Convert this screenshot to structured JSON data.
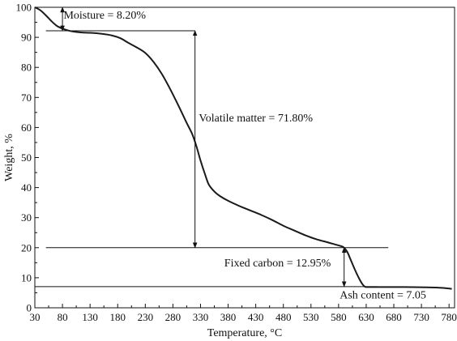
{
  "chart_data": {
    "type": "line",
    "title": "",
    "xlabel": "Temperature, °C",
    "ylabel": "Weight, %",
    "xlim": [
      30,
      790
    ],
    "ylim": [
      0,
      100
    ],
    "x_ticks": [
      30,
      80,
      130,
      180,
      230,
      280,
      330,
      380,
      430,
      480,
      530,
      580,
      630,
      680,
      730,
      780
    ],
    "y_ticks": [
      0,
      10,
      20,
      30,
      40,
      50,
      60,
      70,
      80,
      90,
      100
    ],
    "grid": false,
    "series": [
      {
        "color": "#1a1a1a",
        "points": [
          [
            30,
            100.0
          ],
          [
            40,
            99.0
          ],
          [
            50,
            97.3
          ],
          [
            60,
            95.4
          ],
          [
            70,
            93.8
          ],
          [
            80,
            92.9
          ],
          [
            90,
            92.3
          ],
          [
            100,
            91.9
          ],
          [
            115,
            91.6
          ],
          [
            130,
            91.5
          ],
          [
            150,
            91.2
          ],
          [
            170,
            90.6
          ],
          [
            185,
            89.7
          ],
          [
            200,
            88.1
          ],
          [
            215,
            86.6
          ],
          [
            230,
            84.8
          ],
          [
            245,
            81.8
          ],
          [
            260,
            77.8
          ],
          [
            275,
            72.8
          ],
          [
            290,
            67.3
          ],
          [
            305,
            61.5
          ],
          [
            315,
            57.8
          ],
          [
            323,
            53.5
          ],
          [
            330,
            49.0
          ],
          [
            338,
            44.5
          ],
          [
            345,
            41.0
          ],
          [
            355,
            38.7
          ],
          [
            365,
            37.2
          ],
          [
            380,
            35.6
          ],
          [
            400,
            33.9
          ],
          [
            420,
            32.4
          ],
          [
            440,
            30.9
          ],
          [
            460,
            29.2
          ],
          [
            480,
            27.3
          ],
          [
            500,
            25.7
          ],
          [
            520,
            24.1
          ],
          [
            540,
            22.8
          ],
          [
            560,
            21.8
          ],
          [
            575,
            21.0
          ],
          [
            585,
            20.5
          ],
          [
            590,
            20.0
          ],
          [
            596,
            18.5
          ],
          [
            603,
            15.5
          ],
          [
            610,
            12.5
          ],
          [
            617,
            9.8
          ],
          [
            623,
            7.9
          ],
          [
            628,
            7.0
          ],
          [
            635,
            6.9
          ],
          [
            660,
            6.9
          ],
          [
            700,
            6.9
          ],
          [
            740,
            6.8
          ],
          [
            760,
            6.7
          ],
          [
            775,
            6.5
          ],
          [
            785,
            6.3
          ]
        ]
      }
    ],
    "reference_lines": [
      {
        "y": 92.2,
        "x_range": [
          50,
          320
        ]
      },
      {
        "y": 20.0,
        "x_range": [
          50,
          670
        ]
      },
      {
        "y": 7.05,
        "x_range": [
          30,
          650
        ]
      }
    ],
    "arrows": [
      {
        "x": 80,
        "y_from": 100,
        "y_to": 92.2
      },
      {
        "x": 320,
        "y_from": 92.2,
        "y_to": 20.0
      },
      {
        "x": 590,
        "y_from": 20.0,
        "y_to": 7.05
      }
    ],
    "annotations": [
      {
        "text": "Moisture = 8.20%",
        "x": 82,
        "y": 96.2
      },
      {
        "text": "Volatile matter = 71.80%",
        "x": 327,
        "y": 62.0
      },
      {
        "text": "Fixed carbon = 12.95%",
        "x": 373,
        "y": 13.8
      },
      {
        "text": "Ash content = 7.05",
        "x": 582,
        "y": 3.1
      }
    ]
  }
}
